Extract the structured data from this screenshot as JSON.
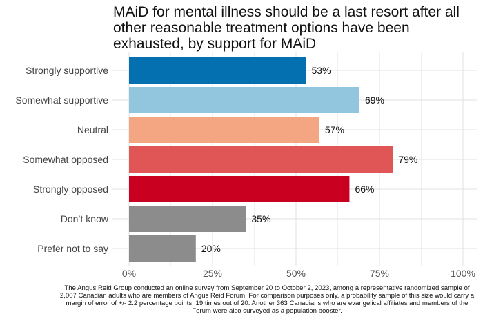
{
  "chart_data": {
    "type": "bar",
    "orientation": "horizontal",
    "title": "MAiD for mental illness should be a last resort after all other reasonable treatment options have been exhausted, by support for MAiD",
    "categories": [
      "Strongly supportive",
      "Somewhat supportive",
      "Neutral",
      "Somewhat opposed",
      "Strongly opposed",
      "Don’t know",
      "Prefer not to say"
    ],
    "values": [
      53,
      69,
      57,
      79,
      66,
      35,
      20
    ],
    "data_labels": [
      "53%",
      "69%",
      "57%",
      "79%",
      "66%",
      "35%",
      "20%"
    ],
    "colors": [
      "#0570b0",
      "#92c5de",
      "#f4a582",
      "#e05555",
      "#ca0020",
      "#8c8c8c",
      "#8c8c8c"
    ],
    "x_ticks": [
      0,
      25,
      50,
      75,
      100
    ],
    "x_tick_labels": [
      "0%",
      "25%",
      "50%",
      "75%",
      "100%"
    ],
    "xlim": [
      0,
      100
    ],
    "grid": true,
    "legend": "none"
  },
  "footnote": "The Angus Reid Group conducted an online survey from September 20 to October 2, 2023, among a representative randomized sample of 2,007 Canadian adults who are members of Angus Reid Forum. For comparison purposes only, a probability sample of this size would carry a margin of error of +/- 2.2 percentage points, 19 times out of 20. Another 363 Canadians who are evangelical affiliates and members of the Forum were also surveyed as a population booster."
}
